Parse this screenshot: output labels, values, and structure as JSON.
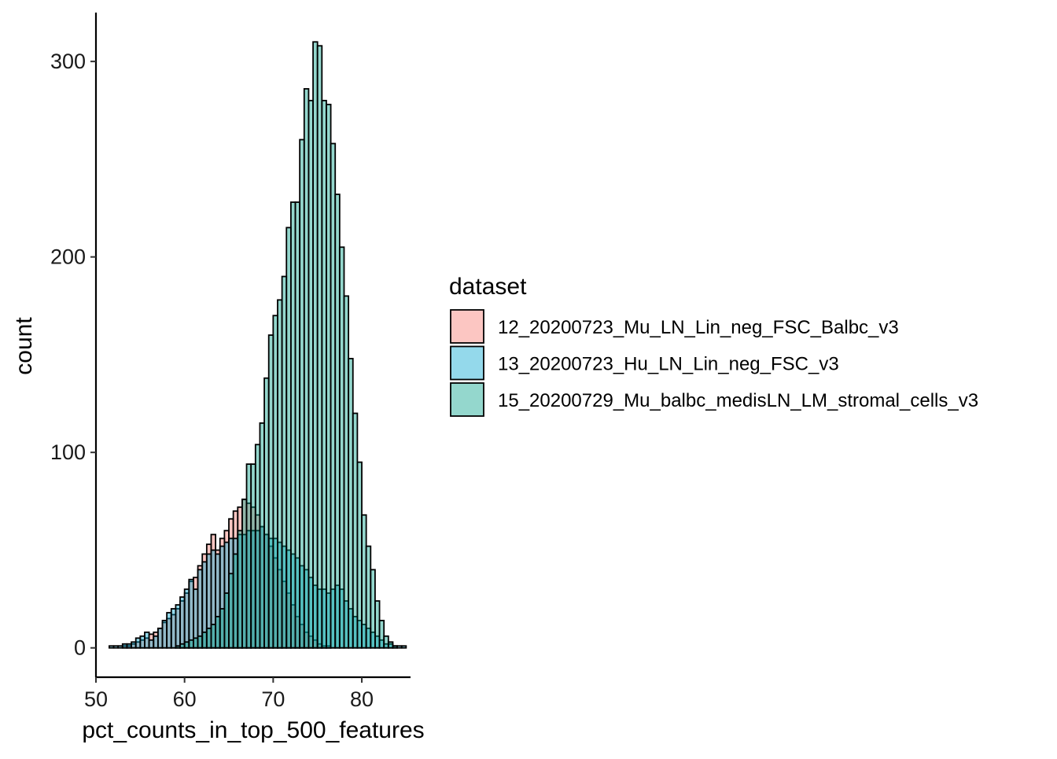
{
  "chart_data": {
    "type": "bar",
    "xlabel": "pct_counts_in_top_500_features",
    "ylabel": "count",
    "xlim": [
      50,
      85.5
    ],
    "ylim": [
      -15,
      325
    ],
    "x_ticks": [
      "50",
      "60",
      "70",
      "80"
    ],
    "y_ticks": [
      "0",
      "100",
      "200",
      "300"
    ],
    "grid": false,
    "legend_position": "right",
    "legend_title": "dataset",
    "bin_start": 51.5,
    "bin_width": 0.5,
    "series": [
      {
        "name": "12_20200723_Mu_LN_Lin_neg_FSC_Balbc_v3",
        "color": "#F8766D",
        "values": [
          0,
          0,
          0,
          1,
          1,
          2,
          3,
          4,
          5,
          7,
          8,
          10,
          13,
          15,
          17,
          20,
          24,
          28,
          34,
          36,
          42,
          48,
          53,
          58,
          50,
          56,
          60,
          66,
          70,
          72,
          76,
          74,
          72,
          68,
          62,
          58,
          52,
          46,
          40,
          34,
          28,
          22,
          16,
          12,
          8,
          6,
          4,
          2,
          1,
          1,
          0,
          0,
          0,
          0,
          0,
          0,
          0,
          0,
          0,
          0,
          0,
          0,
          0,
          0,
          0,
          0,
          0
        ]
      },
      {
        "name": "13_20200723_Hu_LN_Lin_neg_FSC_v3",
        "color": "#00A5CF",
        "values": [
          1,
          1,
          1,
          2,
          2,
          3,
          5,
          6,
          8,
          4,
          6,
          10,
          14,
          18,
          20,
          22,
          26,
          30,
          35,
          30,
          40,
          44,
          48,
          50,
          48,
          52,
          54,
          56,
          56,
          58,
          58,
          60,
          60,
          60,
          62,
          58,
          56,
          56,
          54,
          52,
          50,
          48,
          46,
          42,
          40,
          36,
          32,
          30,
          30,
          28,
          30,
          32,
          30,
          24,
          20,
          16,
          14,
          12,
          10,
          8,
          6,
          4,
          2,
          2,
          1,
          1,
          1
        ]
      },
      {
        "name": "15_20200729_Mu_balbc_medisLN_LM_stromal_cells_v3",
        "color": "#00A087",
        "values": [
          0,
          0,
          0,
          0,
          0,
          0,
          0,
          0,
          0,
          0,
          0,
          0,
          0,
          0,
          0,
          1,
          2,
          3,
          4,
          5,
          6,
          8,
          10,
          12,
          16,
          20,
          28,
          38,
          48,
          60,
          76,
          94,
          94,
          104,
          115,
          138,
          160,
          170,
          178,
          190,
          215,
          228,
          228,
          260,
          286,
          280,
          310,
          308,
          280,
          278,
          258,
          232,
          205,
          180,
          148,
          120,
          95,
          68,
          52,
          40,
          24,
          14,
          6,
          3,
          1,
          0,
          0
        ]
      }
    ]
  }
}
